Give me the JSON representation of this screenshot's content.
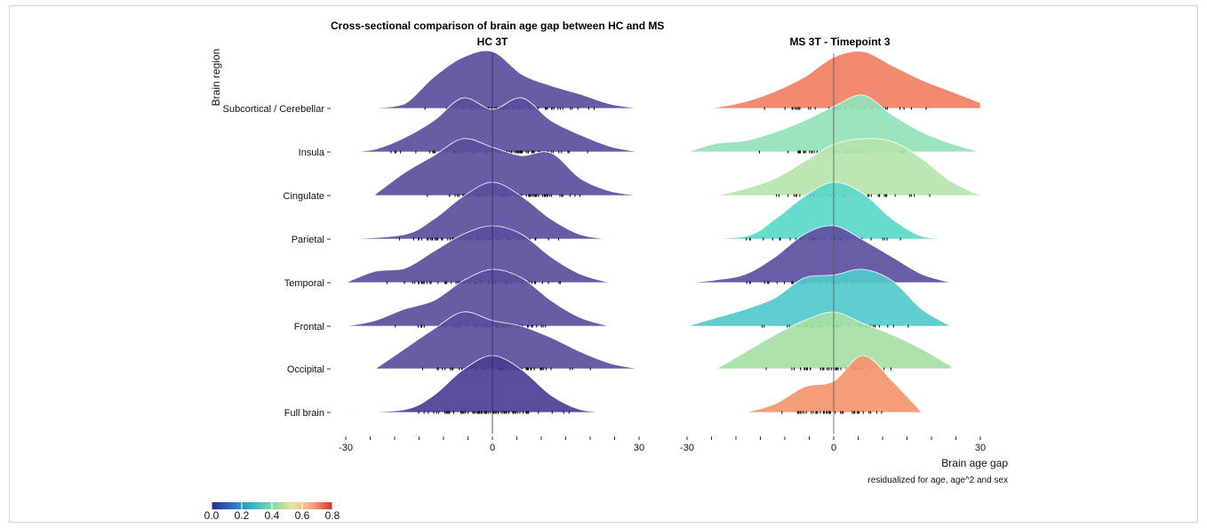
{
  "chart_data": {
    "type": "ridgeline",
    "title": "Cross-sectional comparison of brain age gap between HC and MS",
    "ylabel": "Brain region",
    "xlabel": "Brain age gap",
    "xcaption": "residualized for age, age^2 and sex",
    "xlim": [
      -30,
      30
    ],
    "xticks": [
      "-30",
      "0",
      "30"
    ],
    "regions": [
      "Subcortical / Cerebellar",
      "Insula",
      "Cingulate",
      "Parietal",
      "Temporal",
      "Frontal",
      "Occipital",
      "Full brain"
    ],
    "colorbar": {
      "ticks": [
        "0.0",
        "0.2",
        "0.4",
        "0.6",
        "0.8"
      ],
      "range": [
        0,
        0.8
      ],
      "colors": [
        "#2a2e8c",
        "#2f6cc4",
        "#2fb5c9",
        "#7ddca7",
        "#e7e39a",
        "#f6a47d",
        "#d73027"
      ]
    },
    "panels": [
      {
        "title": "HC 3T",
        "densities": [
          {
            "region": "Subcortical / Cerebellar",
            "value": 0.02,
            "color": "#5b4f9d",
            "x": [
              -24,
              -18,
              -12,
              -6,
              0,
              6,
              12,
              18,
              24,
              30
            ],
            "y": [
              0.01,
              0.08,
              0.55,
              0.9,
              1.0,
              0.6,
              0.4,
              0.25,
              0.08,
              0.0
            ]
          },
          {
            "region": "Insula",
            "value": 0.02,
            "color": "#5b4f9d",
            "x": [
              -30,
              -24,
              -18,
              -12,
              -6,
              0,
              6,
              12,
              18,
              24,
              30
            ],
            "y": [
              0.0,
              0.05,
              0.25,
              0.55,
              0.95,
              0.75,
              0.95,
              0.55,
              0.3,
              0.1,
              0.0
            ]
          },
          {
            "region": "Cingulate",
            "value": 0.02,
            "color": "#5b4f9d",
            "x": [
              -24,
              -18,
              -12,
              -6,
              0,
              6,
              12,
              18,
              24,
              30
            ],
            "y": [
              0.02,
              0.4,
              0.7,
              1.0,
              0.85,
              0.7,
              0.75,
              0.3,
              0.08,
              0.0
            ]
          },
          {
            "region": "Parietal",
            "value": 0.02,
            "color": "#5b4f9d",
            "x": [
              -30,
              -18,
              -12,
              -6,
              0,
              6,
              12,
              18,
              24
            ],
            "y": [
              0.0,
              0.08,
              0.35,
              0.75,
              1.0,
              0.75,
              0.35,
              0.08,
              0.0
            ]
          },
          {
            "region": "Temporal",
            "value": 0.02,
            "color": "#5b4f9d",
            "x": [
              -30,
              -24,
              -18,
              -12,
              -6,
              0,
              6,
              12,
              18,
              24
            ],
            "y": [
              0.0,
              0.2,
              0.25,
              0.55,
              0.85,
              1.0,
              0.85,
              0.45,
              0.15,
              0.0
            ]
          },
          {
            "region": "Frontal",
            "value": 0.02,
            "color": "#5b4f9d",
            "x": [
              -30,
              -24,
              -18,
              -12,
              -6,
              0,
              6,
              12,
              18,
              24
            ],
            "y": [
              0.0,
              0.1,
              0.3,
              0.45,
              0.8,
              1.0,
              0.85,
              0.45,
              0.15,
              0.0
            ]
          },
          {
            "region": "Occipital",
            "value": 0.02,
            "color": "#5b4f9d",
            "x": [
              -24,
              -18,
              -12,
              -6,
              0,
              6,
              12,
              18,
              24,
              30
            ],
            "y": [
              0.0,
              0.35,
              0.7,
              1.0,
              0.85,
              0.75,
              0.55,
              0.3,
              0.1,
              0.0
            ]
          },
          {
            "region": "Full brain",
            "value": 0.02,
            "color": "#4b3f96",
            "x": [
              -30,
              -18,
              -12,
              -6,
              0,
              6,
              12,
              18,
              24
            ],
            "y": [
              0.0,
              0.05,
              0.3,
              0.75,
              1.0,
              0.75,
              0.3,
              0.05,
              0.0
            ]
          }
        ]
      },
      {
        "title": "MS 3T - Timepoint 3",
        "densities": [
          {
            "region": "Subcortical / Cerebellar",
            "value": 0.7,
            "color": "#ef7f63",
            "x": [
              -30,
              -24,
              -18,
              -12,
              -6,
              0,
              6,
              12,
              18,
              24,
              30
            ],
            "y": [
              0.0,
              0.02,
              0.12,
              0.3,
              0.55,
              0.9,
              1.0,
              0.75,
              0.5,
              0.3,
              0.1
            ]
          },
          {
            "region": "Insula",
            "value": 0.5,
            "color": "#92e2b7",
            "x": [
              -30,
              -24,
              -18,
              -12,
              -6,
              0,
              6,
              12,
              18,
              24,
              30
            ],
            "y": [
              0.0,
              0.15,
              0.2,
              0.35,
              0.55,
              0.8,
              1.0,
              0.65,
              0.35,
              0.15,
              0.0
            ]
          },
          {
            "region": "Cingulate",
            "value": 0.55,
            "color": "#b6e4ac",
            "x": [
              -24,
              -18,
              -12,
              -6,
              0,
              6,
              12,
              18,
              24,
              30
            ],
            "y": [
              0.0,
              0.12,
              0.3,
              0.6,
              0.9,
              1.0,
              0.95,
              0.65,
              0.25,
              0.0
            ]
          },
          {
            "region": "Parietal",
            "value": 0.4,
            "color": "#5ad8c9",
            "x": [
              -30,
              -18,
              -12,
              -6,
              0,
              6,
              12,
              18,
              24
            ],
            "y": [
              0.0,
              0.05,
              0.35,
              0.75,
              1.0,
              0.8,
              0.35,
              0.05,
              0.0
            ]
          },
          {
            "region": "Temporal",
            "value": 0.1,
            "color": "#5d4fa0",
            "x": [
              -30,
              -24,
              -18,
              -12,
              -6,
              0,
              6,
              12,
              18,
              24
            ],
            "y": [
              0.0,
              0.05,
              0.15,
              0.45,
              0.85,
              1.0,
              0.75,
              0.45,
              0.15,
              0.0
            ]
          },
          {
            "region": "Frontal",
            "value": 0.35,
            "color": "#52c9cc",
            "x": [
              -30,
              -24,
              -18,
              -12,
              -6,
              0,
              6,
              12,
              18,
              24
            ],
            "y": [
              0.0,
              0.15,
              0.3,
              0.5,
              0.85,
              0.9,
              1.0,
              0.8,
              0.3,
              0.0
            ]
          },
          {
            "region": "Occipital",
            "value": 0.5,
            "color": "#a6e0a6",
            "x": [
              -24,
              -18,
              -12,
              -6,
              0,
              6,
              12,
              18,
              24
            ],
            "y": [
              0.0,
              0.3,
              0.6,
              0.85,
              1.0,
              0.8,
              0.6,
              0.35,
              0.05
            ]
          },
          {
            "region": "Full brain",
            "value": 0.7,
            "color": "#f4946e",
            "x": [
              -18,
              -12,
              -6,
              0,
              6,
              12,
              18
            ],
            "y": [
              0.0,
              0.15,
              0.45,
              0.55,
              1.0,
              0.55,
              0.0
            ]
          }
        ]
      }
    ]
  }
}
